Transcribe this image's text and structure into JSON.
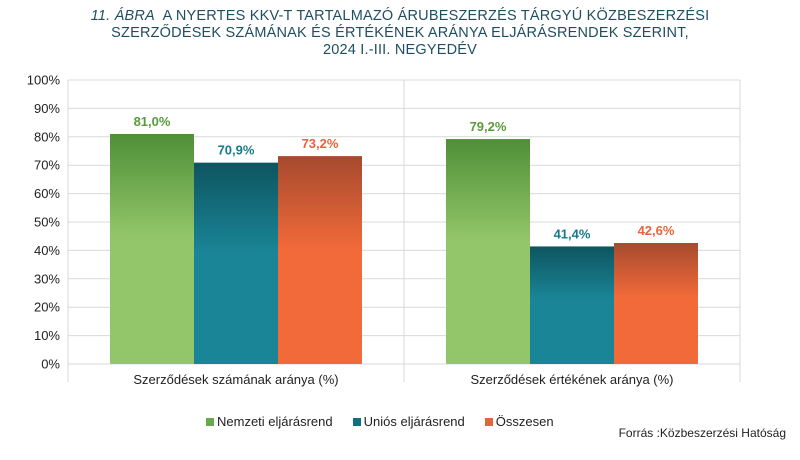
{
  "title": {
    "number": "11. ÁBRA",
    "line1": "A NYERTES KKV-T TARTALMAZÓ ÁRUBESZERZÉS TÁRGYÚ KÖZBESZERZÉSI",
    "line2": "SZERZŐDÉSEK SZÁMÁNAK ÉS ÉRTÉKÉNEK ARÁNYA ELJÁRÁSRENDEK SZERINT,",
    "line3": "2024 I.-III. NEGYEDÉV"
  },
  "source": "Forrás :Közbeszerzési Hatóság",
  "chart_data": {
    "type": "bar",
    "categories": [
      "Szerződések számának aránya (%)",
      "Szerződések értékének aránya (%)"
    ],
    "series": [
      {
        "name": "Nemzeti eljárásrend",
        "values": [
          81.0,
          79.2
        ],
        "labels": [
          "81,0%",
          "79,2%"
        ],
        "color": "#6aa84f",
        "color_top": "#4f8f37",
        "color_bottom": "#93c66a",
        "label_color": "#5a9a3c"
      },
      {
        "name": "Uniós eljárásrend",
        "values": [
          70.9,
          41.4
        ],
        "labels": [
          "70,9%",
          "41,4%"
        ],
        "color": "#146f7d",
        "color_top": "#0e5560",
        "color_bottom": "#1a8597",
        "label_color": "#177a8a"
      },
      {
        "name": "Összesen",
        "values": [
          73.2,
          42.6
        ],
        "labels": [
          "73,2%",
          "42,6%"
        ],
        "color": "#e8623a",
        "color_top": "#a64a2e",
        "color_bottom": "#f26a3a",
        "label_color": "#e8623a"
      }
    ],
    "yticks": [
      "0%",
      "10%",
      "20%",
      "30%",
      "40%",
      "50%",
      "60%",
      "70%",
      "80%",
      "90%",
      "100%"
    ],
    "ylim": [
      0,
      100
    ],
    "grid": true,
    "legend": "bottom"
  }
}
